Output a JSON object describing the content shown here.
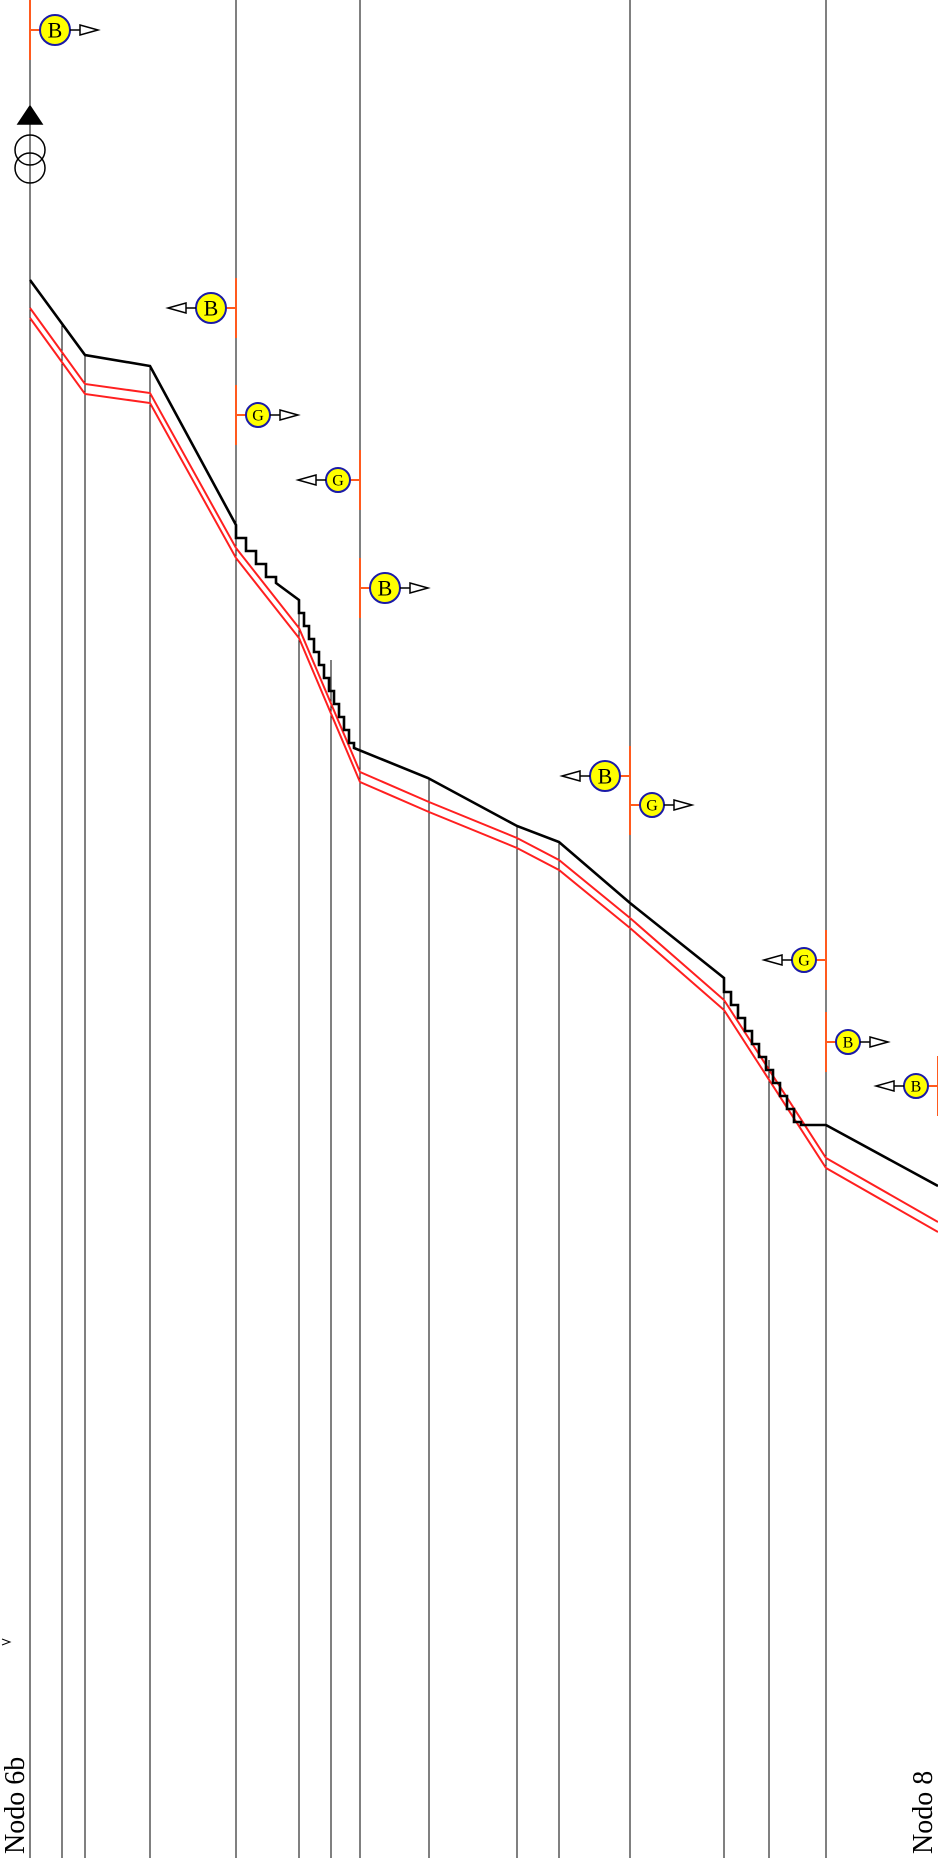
{
  "diagram": {
    "node_start_label": "Nodo 6b",
    "node_end_label": "Nodo 8",
    "equipment_letters": {
      "B": "B",
      "G": "G"
    },
    "colors": {
      "line": "#000000",
      "envelope": "#ff2020",
      "marker_tick": "#ff5a1e",
      "marker_fill": "#ffff00",
      "marker_ring": "#1a1aa8"
    }
  }
}
